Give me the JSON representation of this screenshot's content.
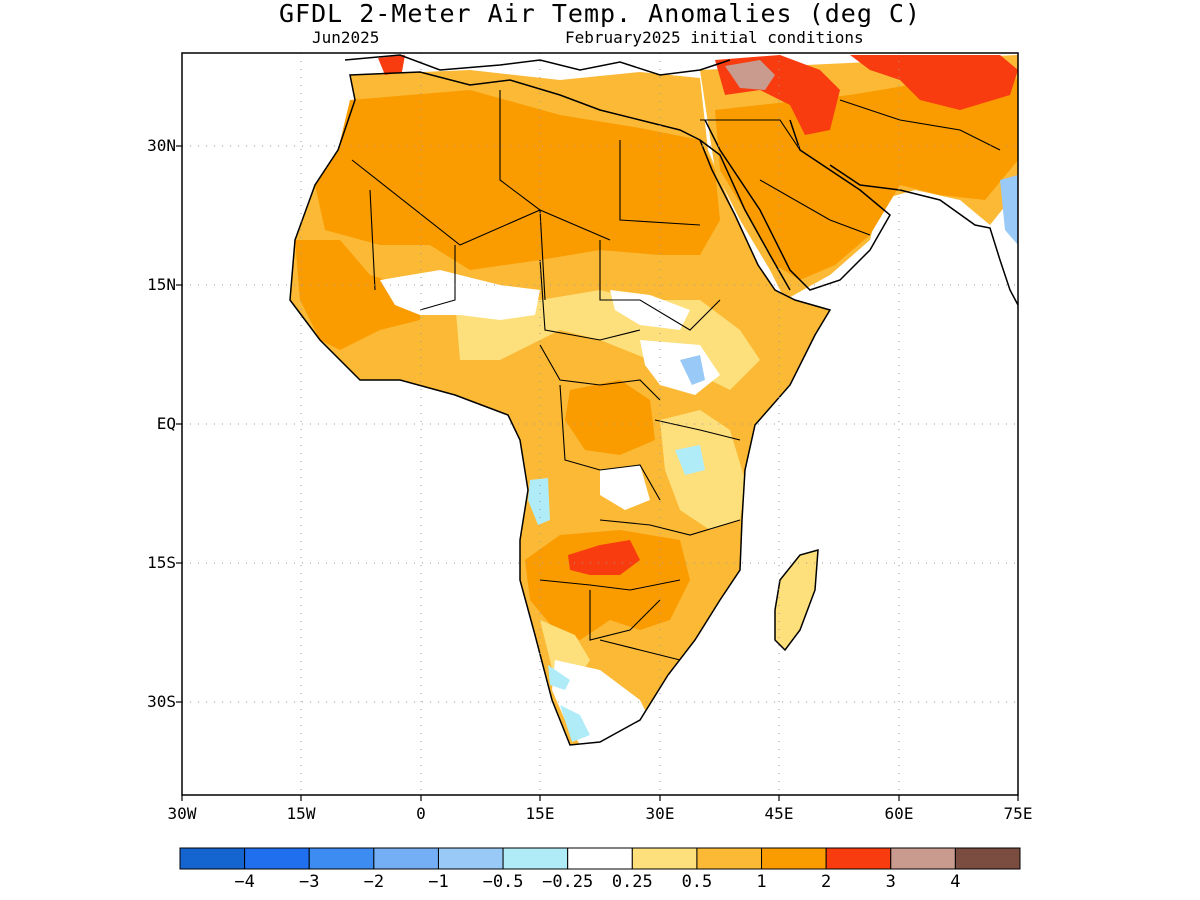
{
  "title": "GFDL 2-Meter Air Temp. Anomalies (deg C)",
  "valid_month": "Jun2025",
  "init_conditions": "February2025 initial conditions",
  "map": {
    "lon_range": [
      -30,
      75
    ],
    "lat_range": [
      -42,
      40
    ],
    "grid": "dotted",
    "lat_ticks": [
      {
        "value": 30,
        "label": "30N"
      },
      {
        "value": 15,
        "label": "15N"
      },
      {
        "value": 0,
        "label": "EQ"
      },
      {
        "value": -15,
        "label": "15S"
      },
      {
        "value": -30,
        "label": "30S"
      }
    ],
    "lon_ticks": [
      {
        "value": -30,
        "label": "30W"
      },
      {
        "value": -15,
        "label": "15W"
      },
      {
        "value": 0,
        "label": "0"
      },
      {
        "value": 15,
        "label": "15E"
      },
      {
        "value": 30,
        "label": "30E"
      },
      {
        "value": 45,
        "label": "45E"
      },
      {
        "value": 60,
        "label": "60E"
      },
      {
        "value": 75,
        "label": "75E"
      }
    ]
  },
  "colorbar": {
    "colors": [
      "#1565d0",
      "#1f6fee",
      "#3d8cf2",
      "#74aef4",
      "#98c9f7",
      "#b0ecf7",
      "#ffffff",
      "#fde07b",
      "#fbb935",
      "#fa9c00",
      "#f83c10",
      "#c89b8e",
      "#7a4d40"
    ],
    "labels": [
      "-4",
      "-3",
      "-2",
      "-1",
      "-0.5",
      "-0.25",
      "0.25",
      "0.5",
      "1",
      "2",
      "3",
      "4"
    ]
  },
  "anomaly_regions": [
    {
      "category": "1",
      "color": "#fbb935",
      "note": "broad warm anomaly over North Africa and Arabia"
    },
    {
      "category": "2",
      "color": "#fa9c00",
      "note": "Sahara and Arabian Peninsula"
    },
    {
      "category": "3",
      "color": "#f83c10",
      "note": "Iran / Caspian region and south-central Africa"
    },
    {
      "category": "4",
      "color": "#c89b8e",
      "note": "small area in eastern Turkey / Caucasus"
    },
    {
      "category": "-0.5",
      "color": "#98c9f7",
      "note": "East African highlands, Angola coast, southwest India"
    },
    {
      "category": "-0.25",
      "color": "#b0ecf7",
      "note": "southwest African coast and Cape"
    }
  ]
}
